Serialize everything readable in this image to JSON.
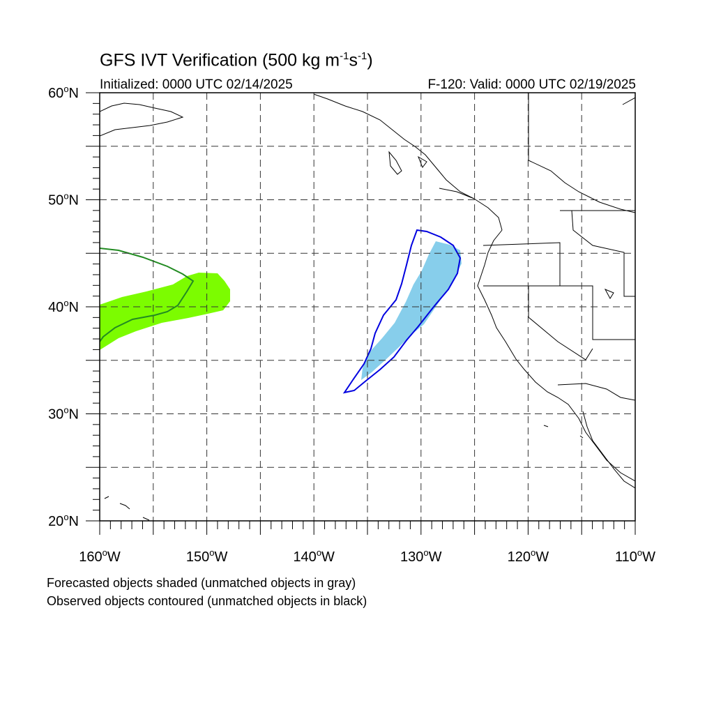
{
  "title": {
    "main": "GFS IVT Verification (500 kg m",
    "exp1": "-1",
    "mid": "s",
    "exp2": "-1",
    "end": ")"
  },
  "initialized": "Initialized: 0000 UTC 02/14/2025",
  "valid": "F-120: Valid: 0000 UTC 02/19/2025",
  "caption_forecast": "Forecasted objects shaded (unmatched objects in gray)",
  "caption_observed": "Observed objects contoured (unmatched objects in black)",
  "map": {
    "lon_range": [
      -160,
      -110
    ],
    "lat_range": [
      20,
      60
    ],
    "grid_lon_step": 5,
    "grid_lat_step": 5,
    "lon_labels": [
      {
        "lon": -160,
        "text": "160",
        "suffix": "W"
      },
      {
        "lon": -150,
        "text": "150",
        "suffix": "W"
      },
      {
        "lon": -140,
        "text": "140",
        "suffix": "W"
      },
      {
        "lon": -130,
        "text": "130",
        "suffix": "W"
      },
      {
        "lon": -120,
        "text": "120",
        "suffix": "W"
      },
      {
        "lon": -110,
        "text": "110",
        "suffix": "W"
      }
    ],
    "lat_labels": [
      {
        "lat": 60,
        "text": "60",
        "suffix": "N"
      },
      {
        "lat": 50,
        "text": "50",
        "suffix": "N"
      },
      {
        "lat": 40,
        "text": "40",
        "suffix": "N"
      },
      {
        "lat": 30,
        "text": "30",
        "suffix": "N"
      },
      {
        "lat": 20,
        "text": "20",
        "suffix": "N"
      }
    ],
    "colors": {
      "forecast_green": "#7cfc00",
      "observed_green": "#228b22",
      "forecast_blue": "#87ceeb",
      "observed_blue": "#0000e0",
      "coast": "#000000"
    }
  }
}
